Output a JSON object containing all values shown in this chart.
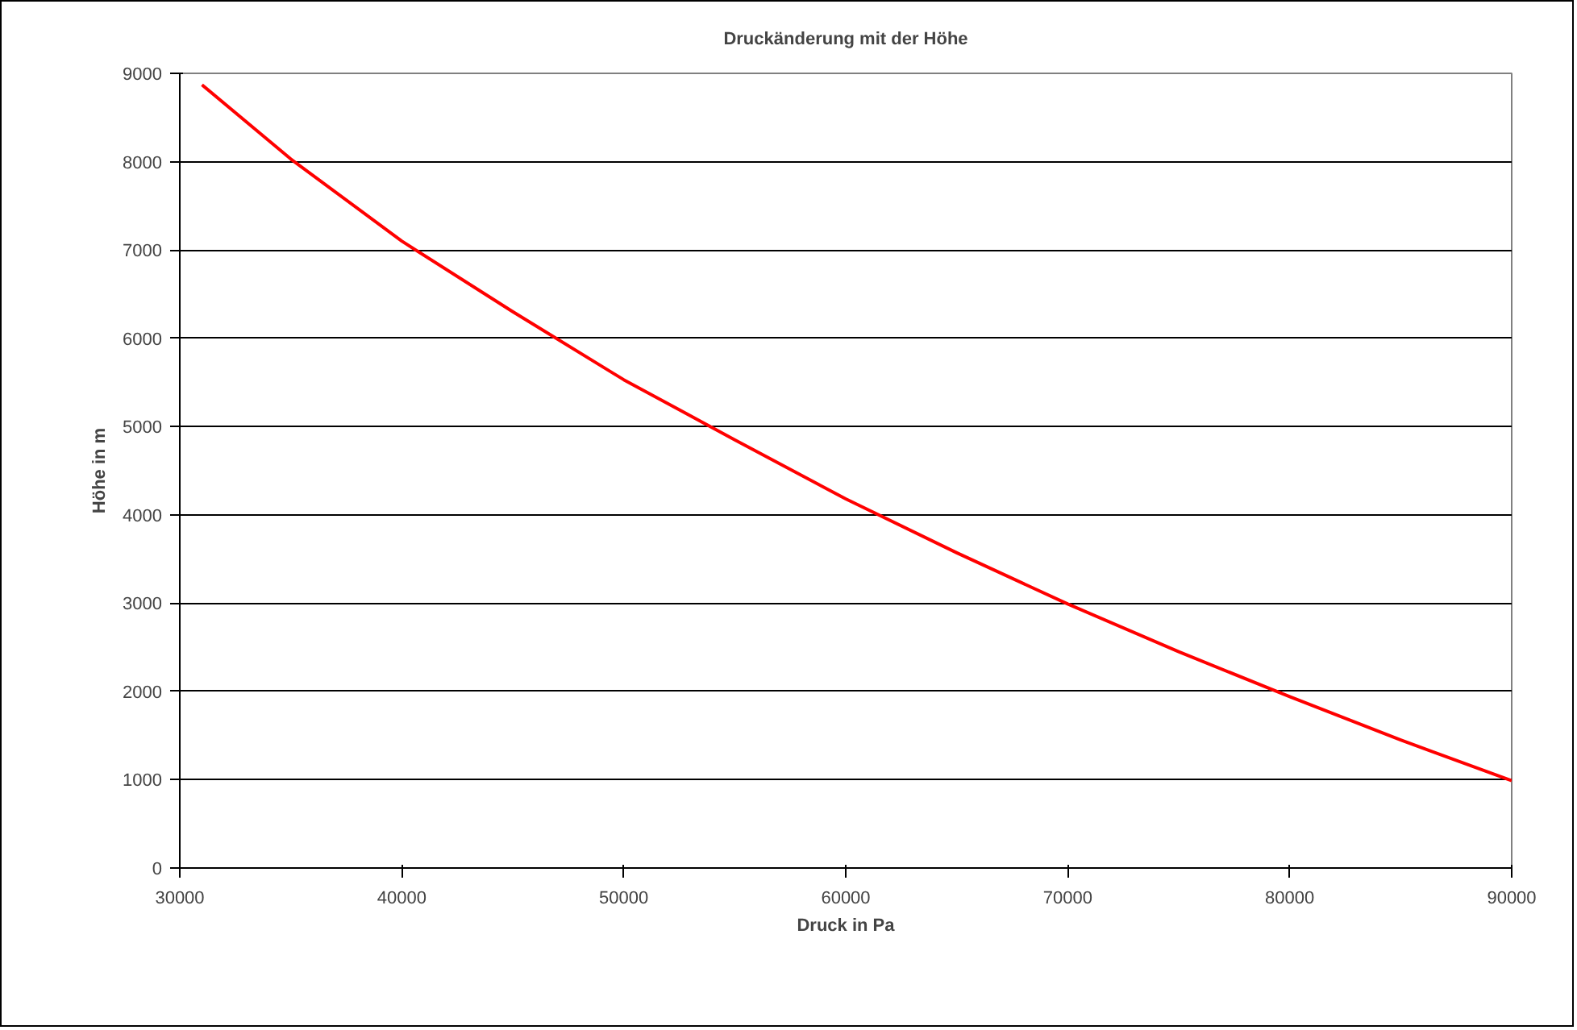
{
  "chart_data": {
    "type": "line",
    "title": "Druckänderung mit der Höhe",
    "xlabel": "Druck in Pa",
    "ylabel": "Höhe in m",
    "x": [
      31000,
      35000,
      40000,
      45000,
      50000,
      55000,
      60000,
      65000,
      70000,
      75000,
      80000,
      85000,
      90000
    ],
    "series": [
      {
        "color": "#ff0000",
        "values": [
          8870,
          8030,
          7100,
          6300,
          5530,
          4850,
          4180,
          3570,
          2990,
          2450,
          1940,
          1450,
          990
        ]
      }
    ],
    "xlim": [
      30000,
      90000
    ],
    "xticks": [
      30000,
      40000,
      50000,
      60000,
      70000,
      80000,
      90000
    ],
    "ylim": [
      0,
      9000
    ],
    "yticks": [
      0,
      1000,
      2000,
      3000,
      4000,
      5000,
      6000,
      7000,
      8000,
      9000
    ],
    "grid": "y",
    "marker": "none",
    "line_style": "solid"
  }
}
